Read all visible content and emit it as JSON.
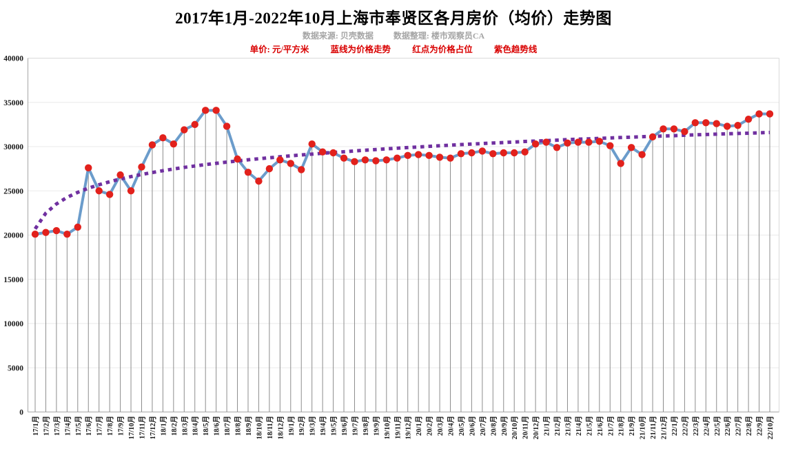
{
  "header": {
    "title": "2017年1月-2022年10月上海市奉贤区各月房价（均价）走势图",
    "meta": {
      "source": "数据来源: 贝壳数据",
      "editor": "数据整理: 楼市观察员CA"
    },
    "legend": {
      "unit": "单价: 元/平方米",
      "blue_note": "蓝线为价格走势",
      "red_note": "红点为价格占位",
      "purple_note": "紫色趋势线"
    }
  },
  "colors": {
    "price_line": "#6B9CCB",
    "point": "#E2211C",
    "trend": "#7030A0",
    "drop_line": "#8c8c8c",
    "grid": "#eaeaea",
    "axis": "#a6a6a6",
    "border_light": "#d9d9d9",
    "meta_text": "#a5a5a5",
    "legend_text": "#d90000"
  },
  "chart_data": {
    "type": "line",
    "title": "2017年1月-2022年10月上海市奉贤区各月房价（均价）走势图",
    "ylabel": "元/平方米",
    "xlabel": "",
    "grid": true,
    "legend_position": "none",
    "ylim": [
      0,
      40000
    ],
    "y_ticks": [
      0,
      5000,
      10000,
      15000,
      20000,
      25000,
      30000,
      35000,
      40000
    ],
    "categories": [
      "17/1月",
      "17/2月",
      "17/3月",
      "17/4月",
      "17/5月",
      "17/6月",
      "17/7月",
      "17/8月",
      "17/9月",
      "17/10月",
      "17/11月",
      "17/12月",
      "18/1月",
      "18/2月",
      "18/3月",
      "18/4月",
      "18/5月",
      "18/6月",
      "18/7月",
      "18/8月",
      "18/9月",
      "18/10月",
      "18/11月",
      "18/12月",
      "19/1月",
      "19/2月",
      "19/3月",
      "19/4月",
      "19/5月",
      "19/6月",
      "19/7月",
      "19/8月",
      "19/9月",
      "19/10月",
      "19/11月",
      "19/12月",
      "20/1月",
      "20/2月",
      "20/3月",
      "20/4月",
      "20/5月",
      "20/6月",
      "20/7月",
      "20/8月",
      "20/9月",
      "20/10月",
      "20/11月",
      "20/12月",
      "21/1月",
      "21/2月",
      "21/3月",
      "21/4月",
      "21/5月",
      "21/6月",
      "21/7月",
      "21/8月",
      "21/9月",
      "21/10月",
      "21/11月",
      "21/12月",
      "22/1月",
      "22/2月",
      "22/3月",
      "22/4月",
      "22/5月",
      "22/6月",
      "22/7月",
      "22/8月",
      "22/9月",
      "22/10月"
    ],
    "series": [
      {
        "name": "房价均价（蓝线为价格走势，红点为价格占位）",
        "color": "#6B9CCB",
        "marker_color": "#E2211C",
        "values": [
          20100,
          20300,
          20500,
          20100,
          20900,
          27600,
          25000,
          24600,
          26800,
          25000,
          27700,
          30200,
          31000,
          30300,
          31900,
          32500,
          34100,
          34100,
          32300,
          28600,
          27100,
          26100,
          27500,
          28500,
          28100,
          27400,
          30300,
          29400,
          29300,
          28700,
          28300,
          28500,
          28400,
          28500,
          28700,
          29000,
          29100,
          29000,
          28800,
          28700,
          29200,
          29300,
          29500,
          29200,
          29300,
          29300,
          29400,
          30300,
          30500,
          29900,
          30400,
          30500,
          30500,
          30600,
          30100,
          28100,
          29900,
          29100,
          31100,
          32000,
          32000,
          31700,
          32700,
          32700,
          32600,
          32300,
          32400,
          33100,
          33700,
          33700
        ]
      },
      {
        "name": "紫色趋势线",
        "color": "#7030A0",
        "style": "dashed",
        "values": [
          20700,
          22480,
          23520,
          24260,
          24830,
          25300,
          25690,
          26030,
          26340,
          26610,
          26850,
          27070,
          27280,
          27470,
          27650,
          27810,
          27970,
          28110,
          28250,
          28380,
          28510,
          28630,
          28740,
          28850,
          28960,
          29060,
          29150,
          29250,
          29340,
          29420,
          29510,
          29590,
          29670,
          29750,
          29820,
          29890,
          29960,
          30030,
          30100,
          30160,
          30230,
          30290,
          30350,
          30410,
          30460,
          30520,
          30580,
          30630,
          30680,
          30730,
          30790,
          30840,
          30880,
          30930,
          30980,
          31030,
          31070,
          31120,
          31160,
          31200,
          31240,
          31290,
          31330,
          31370,
          31410,
          31450,
          31490,
          31520,
          31560,
          31600
        ]
      }
    ]
  }
}
